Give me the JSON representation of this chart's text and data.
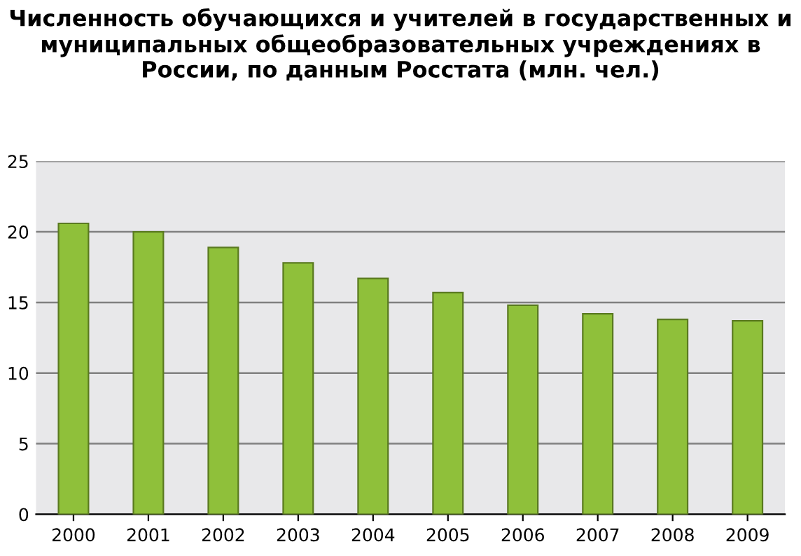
{
  "chart_data": {
    "type": "bar",
    "title": "Численность обучающихся и учителей в государственных и муниципальных общеобразовательных учреждениях в России, по данным Росстата (млн. чел.)",
    "categories": [
      "2000",
      "2001",
      "2002",
      "2003",
      "2004",
      "2005",
      "2006",
      "2007",
      "2008",
      "2009"
    ],
    "values": [
      20.6,
      20.0,
      18.9,
      17.8,
      16.7,
      15.7,
      14.8,
      14.2,
      13.8,
      13.7
    ],
    "color": "#8fc03a",
    "ylim": [
      0,
      25
    ],
    "yticks": [
      0,
      5,
      10,
      15,
      20,
      25
    ],
    "grid": "y",
    "legend": false
  }
}
